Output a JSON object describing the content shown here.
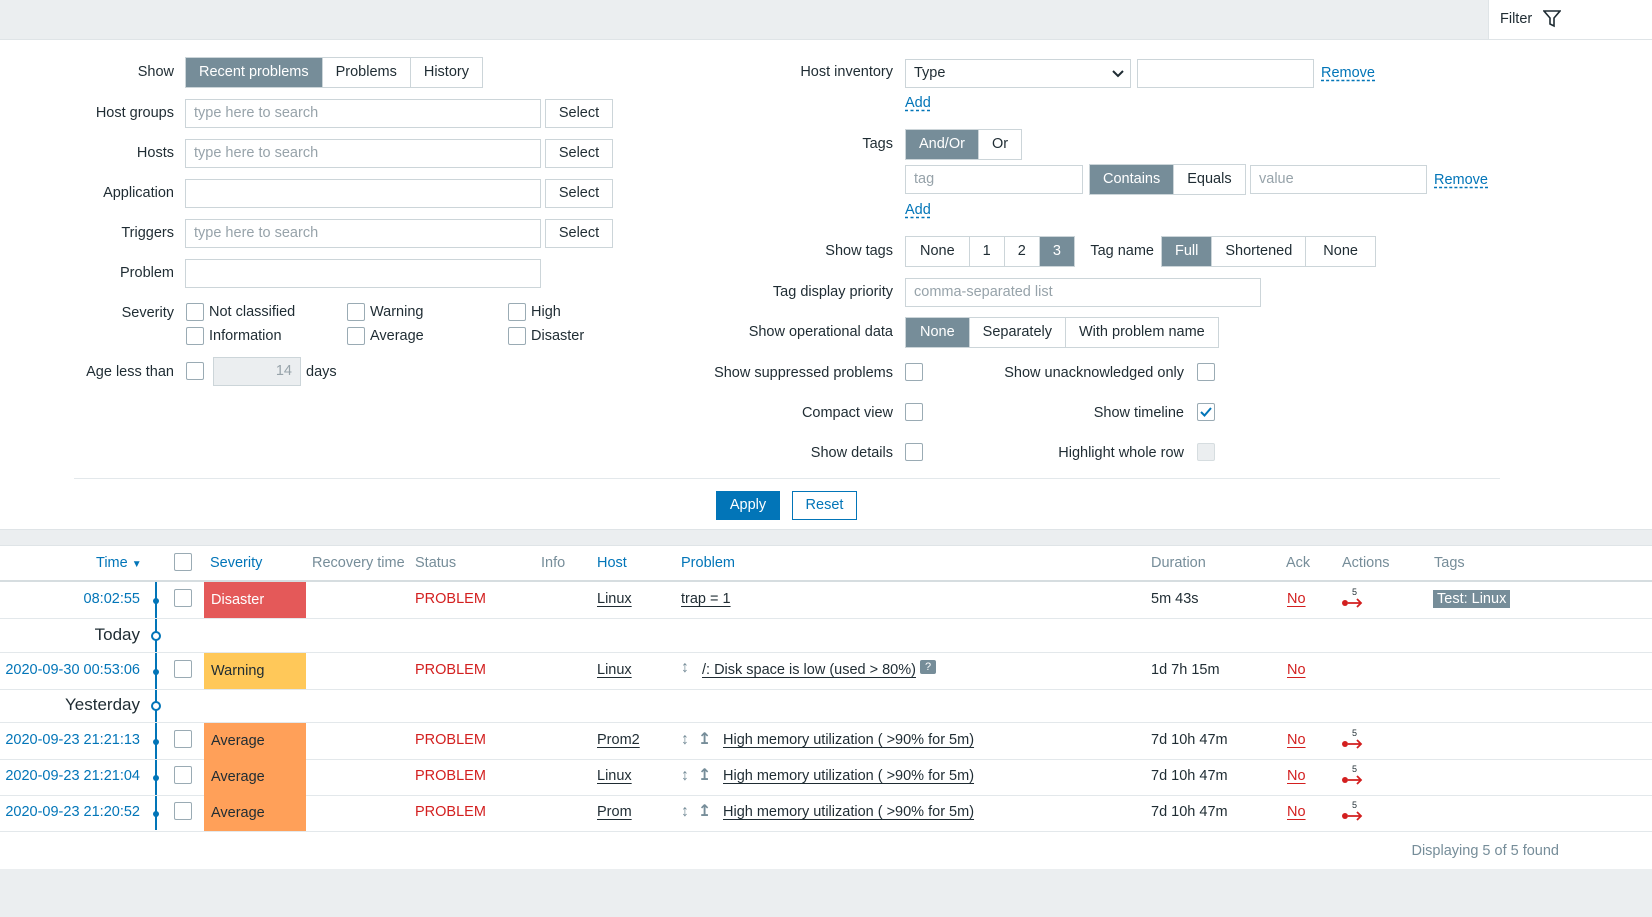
{
  "filter_tab": {
    "label": "Filter"
  },
  "filter": {
    "show": {
      "label": "Show",
      "options": [
        "Recent problems",
        "Problems",
        "History"
      ],
      "active": 0
    },
    "host_groups": {
      "label": "Host groups",
      "placeholder": "type here to search",
      "select": "Select"
    },
    "hosts": {
      "label": "Hosts",
      "placeholder": "type here to search",
      "select": "Select"
    },
    "application": {
      "label": "Application",
      "select": "Select"
    },
    "triggers": {
      "label": "Triggers",
      "placeholder": "type here to search",
      "select": "Select"
    },
    "problem": {
      "label": "Problem"
    },
    "severity": {
      "label": "Severity",
      "options": [
        "Not classified",
        "Warning",
        "High",
        "Information",
        "Average",
        "Disaster"
      ]
    },
    "age": {
      "label": "Age less than",
      "value": "14",
      "unit": "days"
    },
    "host_inventory": {
      "label": "Host inventory",
      "field": "Type",
      "remove": "Remove",
      "add": "Add"
    },
    "tags": {
      "label": "Tags",
      "modes": [
        "And/Or",
        "Or"
      ],
      "tag_placeholder": "tag",
      "ops": [
        "Contains",
        "Equals"
      ],
      "value_placeholder": "value",
      "remove": "Remove",
      "add": "Add"
    },
    "show_tags": {
      "label": "Show tags",
      "options": [
        "None",
        "1",
        "2",
        "3"
      ],
      "active": 3
    },
    "tag_name": {
      "label": "Tag name",
      "options": [
        "Full",
        "Shortened",
        "None"
      ],
      "active": 0
    },
    "tag_priority": {
      "label": "Tag display priority",
      "placeholder": "comma-separated list"
    },
    "operational": {
      "label": "Show operational data",
      "options": [
        "None",
        "Separately",
        "With problem name"
      ],
      "active": 0
    },
    "suppressed": {
      "label": "Show suppressed problems"
    },
    "unack": {
      "label": "Show unacknowledged only"
    },
    "compact": {
      "label": "Compact view"
    },
    "timeline": {
      "label": "Show timeline",
      "checked": true
    },
    "details": {
      "label": "Show details"
    },
    "highlight": {
      "label": "Highlight whole row"
    },
    "apply": "Apply",
    "reset": "Reset"
  },
  "table": {
    "headers": {
      "time": "Time",
      "severity": "Severity",
      "recovery": "Recovery time",
      "status": "Status",
      "info": "Info",
      "host": "Host",
      "problem": "Problem",
      "duration": "Duration",
      "ack": "Ack",
      "actions": "Actions",
      "tags": "Tags"
    },
    "sort_arrow": "▼",
    "rows": [
      {
        "time": "08:02:55",
        "severity": "Disaster",
        "status": "PROBLEM",
        "host": "Linux",
        "problem": "trap = 1",
        "duration": "5m 43s",
        "ack": "No",
        "actions_count": "5",
        "tag": "Test: Linux"
      },
      {
        "time": "2020-09-30 00:53:06",
        "severity": "Warning",
        "status": "PROBLEM",
        "host": "Linux",
        "problem": "/: Disk space is low (used > 80%)",
        "duration": "1d 7h 15m",
        "ack": "No",
        "info_badge": "?"
      },
      {
        "time": "2020-09-23 21:21:13",
        "severity": "Average",
        "status": "PROBLEM",
        "host": "Prom2",
        "problem": "High memory utilization ( >90% for 5m)",
        "duration": "7d 10h 47m",
        "ack": "No",
        "actions_count": "5"
      },
      {
        "time": "2020-09-23 21:21:04",
        "severity": "Average",
        "status": "PROBLEM",
        "host": "Linux",
        "problem": "High memory utilization ( >90% for 5m)",
        "duration": "7d 10h 47m",
        "ack": "No",
        "actions_count": "5"
      },
      {
        "time": "2020-09-23 21:20:52",
        "severity": "Average",
        "status": "PROBLEM",
        "host": "Prom",
        "problem": "High memory utilization ( >90% for 5m)",
        "duration": "7d 10h 47m",
        "ack": "No",
        "actions_count": "5"
      }
    ],
    "timeline_labels": {
      "today": "Today",
      "yesterday": "Yesterday"
    },
    "footer": "Displaying 5 of 5 found"
  },
  "colors": {
    "disaster": "#e45959",
    "warning": "#ffc859",
    "average": "#ffa059",
    "accent": "#0275b8"
  }
}
